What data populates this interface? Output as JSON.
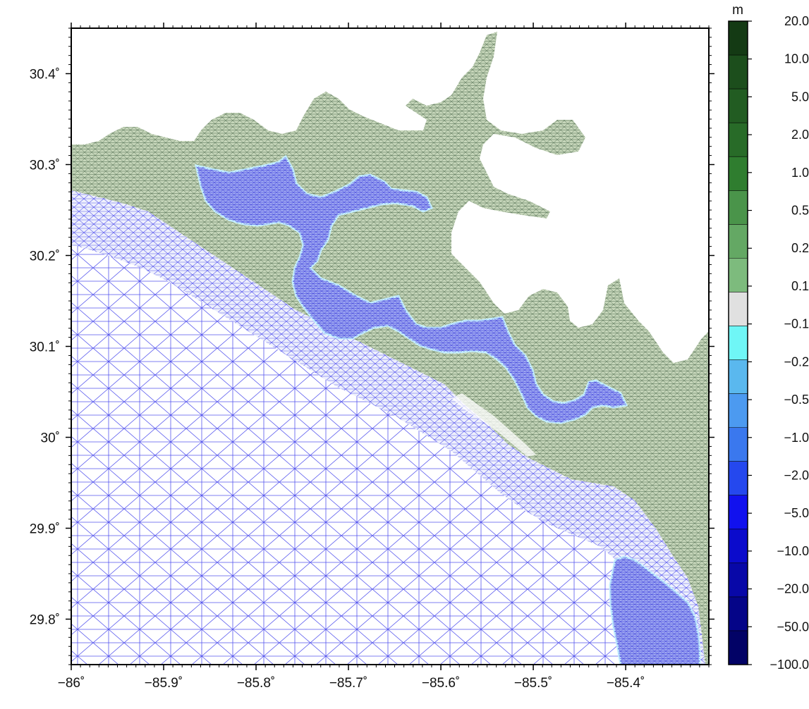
{
  "map": {
    "lon_range": [
      -86.0,
      -85.31
    ],
    "lat_range": [
      29.75,
      30.45
    ],
    "lon_ticks": [
      {
        "value": -86.0,
        "label": "−86˚"
      },
      {
        "value": -85.9,
        "label": "−85.9˚"
      },
      {
        "value": -85.8,
        "label": "−85.8˚"
      },
      {
        "value": -85.7,
        "label": "−85.7˚"
      },
      {
        "value": -85.6,
        "label": "−85.6˚"
      },
      {
        "value": -85.5,
        "label": "−85.5˚"
      },
      {
        "value": -85.4,
        "label": "−85.4˚"
      }
    ],
    "lat_ticks": [
      {
        "value": 30.4,
        "label": "30.4˚"
      },
      {
        "value": 30.3,
        "label": "30.3˚"
      },
      {
        "value": 30.2,
        "label": "30.2˚"
      },
      {
        "value": 30.1,
        "label": "30.1˚"
      },
      {
        "value": 30.0,
        "label": "30˚"
      },
      {
        "value": 29.9,
        "label": "29.9˚"
      },
      {
        "value": 29.8,
        "label": "29.8˚"
      }
    ],
    "colors": {
      "land_fill": "#c6d6ba",
      "land_mesh": "#4d6a4d",
      "water_fill": "#f3f3fb",
      "water_mesh": "#5555ee",
      "bay_fill": "#9ea8f2",
      "white": "#ffffff"
    }
  },
  "colorbar": {
    "unit": "m",
    "labels": [
      "20.0",
      "10.0",
      "5.0",
      "2.0",
      "1.0",
      "0.5",
      "0.2",
      "0.1",
      "−0.1",
      "−0.2",
      "−0.5",
      "−1.0",
      "−2.0",
      "−5.0",
      "−10.0",
      "−20.0",
      "−50.0",
      "−100.0"
    ],
    "colors": [
      "#143a14",
      "#1c4e1c",
      "#225c22",
      "#286b28",
      "#2f7d2f",
      "#4a944a",
      "#64a864",
      "#7dbb7d",
      "#e0e0e0",
      "#6ff6f6",
      "#5ab8ee",
      "#4c9af0",
      "#3a78ee",
      "#2548ee",
      "#1111ee",
      "#0b0bcc",
      "#0808a8",
      "#050588",
      "#020266"
    ]
  }
}
